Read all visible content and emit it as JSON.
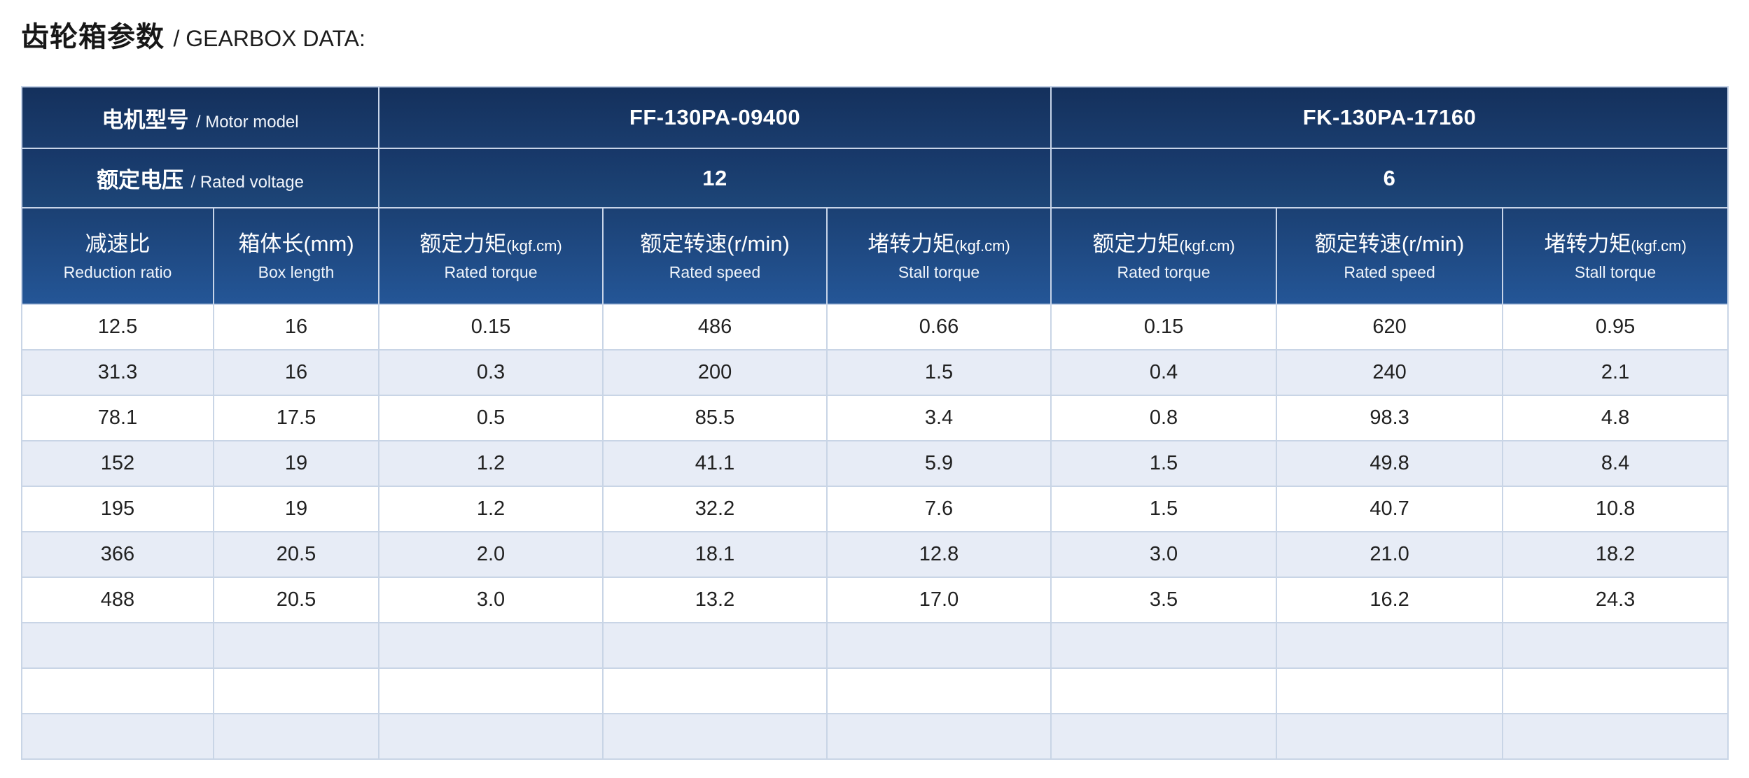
{
  "title": {
    "zh": "齿轮箱参数",
    "en": "/ GEARBOX DATA:"
  },
  "table": {
    "motor_model_label": {
      "zh": "电机型号",
      "en": "/ Motor model"
    },
    "rated_voltage_label": {
      "zh": "额定电压",
      "en": "/ Rated voltage"
    },
    "models": [
      {
        "name": "FF-130PA-09400",
        "voltage": "12"
      },
      {
        "name": "FK-130PA-17160",
        "voltage": "6"
      }
    ],
    "columns": [
      {
        "zh": "减速比",
        "en": "Reduction ratio"
      },
      {
        "zh": "箱体长(mm)",
        "en": "Box length"
      },
      {
        "zh": "额定力矩",
        "unit": "(kgf.cm)",
        "en": "Rated torque"
      },
      {
        "zh": "额定转速(r/min)",
        "en": "Rated speed"
      },
      {
        "zh": "堵转力矩",
        "unit": "(kgf.cm)",
        "en": "Stall torque"
      },
      {
        "zh": "额定力矩",
        "unit": "(kgf.cm)",
        "en": "Rated torque"
      },
      {
        "zh": "额定转速(r/min)",
        "en": "Rated speed"
      },
      {
        "zh": "堵转力矩",
        "unit": "(kgf.cm)",
        "en": "Stall torque"
      }
    ],
    "rows": [
      [
        "12.5",
        "16",
        "0.15",
        "486",
        "0.66",
        "0.15",
        "620",
        "0.95"
      ],
      [
        "31.3",
        "16",
        "0.3",
        "200",
        "1.5",
        "0.4",
        "240",
        "2.1"
      ],
      [
        "78.1",
        "17.5",
        "0.5",
        "85.5",
        "3.4",
        "0.8",
        "98.3",
        "4.8"
      ],
      [
        "152",
        "19",
        "1.2",
        "41.1",
        "5.9",
        "1.5",
        "49.8",
        "8.4"
      ],
      [
        "195",
        "19",
        "1.2",
        "32.2",
        "7.6",
        "1.5",
        "40.7",
        "10.8"
      ],
      [
        "366",
        "20.5",
        "2.0",
        "18.1",
        "12.8",
        "3.0",
        "21.0",
        "18.2"
      ],
      [
        "488",
        "20.5",
        "3.0",
        "13.2",
        "17.0",
        "3.5",
        "16.2",
        "24.3"
      ],
      [
        "",
        "",
        "",
        "",
        "",
        "",
        "",
        ""
      ],
      [
        "",
        "",
        "",
        "",
        "",
        "",
        "",
        ""
      ],
      [
        "",
        "",
        "",
        "",
        "",
        "",
        "",
        ""
      ]
    ]
  },
  "colors": {
    "header_navy_top": "#14305c",
    "header_navy_bottom": "#245697",
    "stripe_row": "#e7ecf6",
    "grid_line": "#c9d5e6",
    "header_text": "#ffffff",
    "body_text": "#212121"
  }
}
